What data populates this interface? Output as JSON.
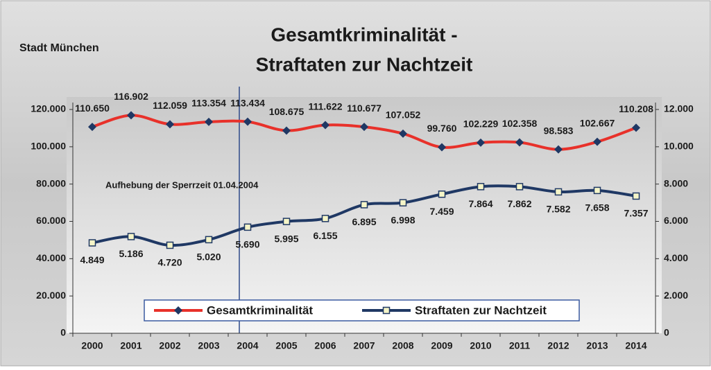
{
  "chart_data": {
    "type": "line",
    "title": [
      "Gesamtkriminalität -",
      "Straftaten zur Nachtzeit"
    ],
    "subtitle": "Stadt München",
    "annotation": "Aufhebung der Sperrzeit 01.04.2004",
    "categories": [
      "2000",
      "2001",
      "2002",
      "2003",
      "2004",
      "2005",
      "2006",
      "2007",
      "2008",
      "2009",
      "2010",
      "2011",
      "2012",
      "2013",
      "2014"
    ],
    "series": [
      {
        "name": "Gesamtkriminalität",
        "color": "#e8312a",
        "marker_color": "#1f3864",
        "values": [
          110650,
          116902,
          112059,
          113354,
          113434,
          108675,
          111622,
          110677,
          107052,
          99760,
          102229,
          102358,
          98583,
          102667,
          110208
        ],
        "value_labels": [
          "110.650",
          "116.902",
          "112.059",
          "113.354",
          "113.434",
          "108.675",
          "111.622",
          "110.677",
          "107.052",
          "99.760",
          "102.229",
          "102.358",
          "98.583",
          "102.667",
          "110.208"
        ]
      },
      {
        "name": "Straftaten zur Nachtzeit",
        "color": "#1f3864",
        "marker_color": "#f5f5c8",
        "axis": "y2",
        "values": [
          4849,
          5186,
          4720,
          5020,
          5690,
          5995,
          6155,
          6895,
          6998,
          7459,
          7864,
          7862,
          7582,
          7658,
          7357
        ],
        "value_labels": [
          "4.849",
          "5.186",
          "4.720",
          "5.020",
          "5.690",
          "5.995",
          "6.155",
          "6.895",
          "6.998",
          "7.459",
          "7.864",
          "7.862",
          "7.582",
          "7.658",
          "7.357"
        ]
      }
    ],
    "ylim": [
      0,
      120000
    ],
    "yticks": [
      0,
      {
        "value": 20000,
        "label": "20.000"
      },
      {
        "value": 40000,
        "label": "40.000"
      },
      {
        "value": 60000,
        "label": "60.000"
      },
      {
        "value": 80000,
        "label": "80.000"
      },
      {
        "value": 100000,
        "label": "100.000"
      },
      {
        "value": 120000,
        "label": "120.000"
      }
    ],
    "y2lim": [
      0,
      12000
    ],
    "y2ticks": [
      0,
      {
        "value": 2000,
        "label": "2.000"
      },
      {
        "value": 4000,
        "label": "4.000"
      },
      {
        "value": 6000,
        "label": "6.000"
      },
      {
        "value": 8000,
        "label": "8.000"
      },
      {
        "value": 10000,
        "label": "10.000"
      },
      {
        "value": 12000,
        "label": "12.000"
      }
    ],
    "legend": "bottom"
  }
}
